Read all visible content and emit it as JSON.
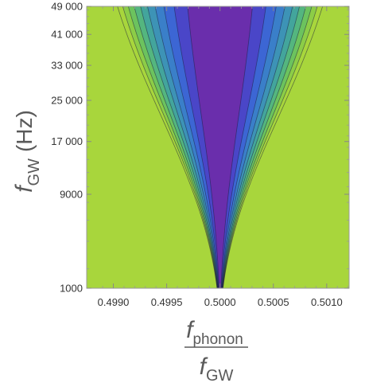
{
  "chart_data": {
    "type": "contour",
    "xlabel": {
      "numerator_main": "f",
      "numerator_sub": "phonon",
      "denominator_main": "f",
      "denominator_sub": "GW"
    },
    "ylabel": {
      "main": "f",
      "sub": "GW",
      "unit": "(Hz)"
    },
    "x_ticks": [
      0.499,
      0.4995,
      0.5,
      0.5005,
      0.501
    ],
    "x_tick_labels": [
      "0.4990",
      "0.4995",
      "0.5000",
      "0.5005",
      "0.5010"
    ],
    "y_ticks": [
      1000,
      9000,
      17000,
      25000,
      33000,
      41000,
      49000
    ],
    "y_tick_labels": [
      "1000",
      "9000",
      "17 000",
      "25 000",
      "33 000",
      "41 000",
      "49 000"
    ],
    "y_scale": "sqrt",
    "xlim": [
      0.49875,
      0.50121
    ],
    "ylim": [
      1000,
      49000
    ],
    "model": {
      "center": 0.5,
      "curvature_x": 0.00043,
      "norm_y": 49000
    },
    "contour_levels": [
      1,
      2,
      3,
      4,
      5,
      6,
      7,
      8,
      9,
      10
    ],
    "colors": [
      "#6a2eac",
      "#4a46c8",
      "#3c66d4",
      "#3a7fc9",
      "#3d93b6",
      "#43a59c",
      "#54b67f",
      "#6cc35e",
      "#8ccd47",
      "#a8d63c"
    ],
    "grid": false,
    "legend": "none"
  }
}
